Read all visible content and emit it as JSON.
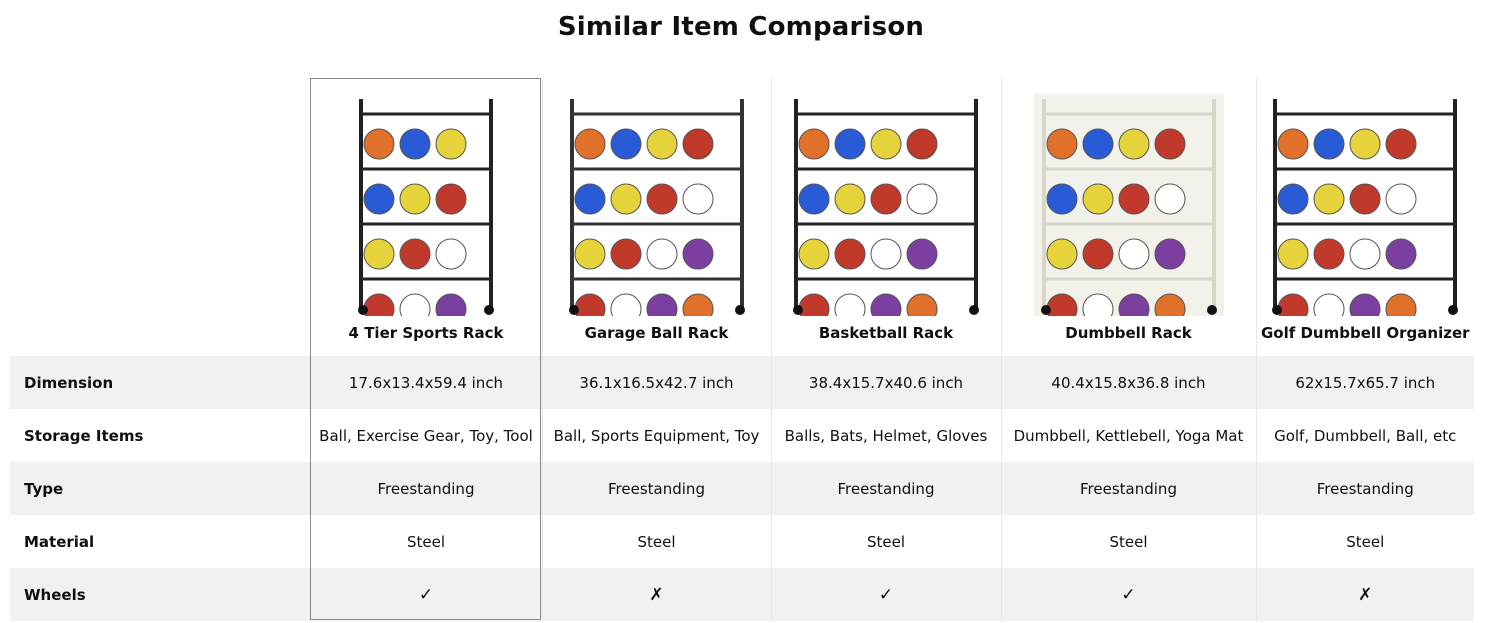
{
  "title": "Similar Item Comparison",
  "products": [
    {
      "name": "4 Tier Sports Rack",
      "image_color": "#222"
    },
    {
      "name": "Garage Ball Rack",
      "image_color": "#333"
    },
    {
      "name": "Basketball Rack",
      "image_color": "#222"
    },
    {
      "name": "Dumbbell Rack",
      "image_color": "#d8d6c8"
    },
    {
      "name": "Golf Dumbbell Organizer",
      "image_color": "#222"
    }
  ],
  "rows": [
    {
      "label": "Dimension",
      "values": [
        "17.6x13.4x59.4 inch",
        "36.1x16.5x42.7 inch",
        "38.4x15.7x40.6 inch",
        "40.4x15.8x36.8 inch",
        "62x15.7x65.7 inch"
      ]
    },
    {
      "label": "Storage Items",
      "values": [
        "Ball, Exercise Gear, Toy, Tool",
        "Ball, Sports Equipment, Toy",
        "Balls, Bats, Helmet, Gloves",
        "Dumbbell, Kettlebell, Yoga Mat",
        "Golf, Dumbbell, Ball, etc"
      ]
    },
    {
      "label": "Type",
      "values": [
        "Freestanding",
        "Freestanding",
        "Freestanding",
        "Freestanding",
        "Freestanding"
      ]
    },
    {
      "label": "Material",
      "values": [
        "Steel",
        "Steel",
        "Steel",
        "Steel",
        "Steel"
      ]
    },
    {
      "label": "Wheels",
      "values": [
        "✓",
        "✗",
        "✓",
        "✓",
        "✗"
      ]
    }
  ]
}
